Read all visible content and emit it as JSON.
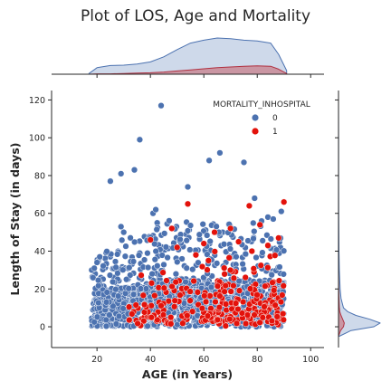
{
  "colors": {
    "survived": "#4c72b0",
    "died": "#e3120b",
    "survived_fill": "#c5d2e6",
    "died_fill": "#c98a96",
    "marker_edge": "#ffffff"
  },
  "chart_data": {
    "type": "scatter",
    "subtype": "jointplot-with-kde-marginals",
    "title": "Plot of LOS, Age and Mortality",
    "xlabel": "AGE (in Years)",
    "ylabel": "Length of Stay (in days)",
    "xlim": [
      3,
      105
    ],
    "ylim": [
      -11,
      125
    ],
    "xticks": [
      20,
      40,
      60,
      80,
      100
    ],
    "yticks": [
      0,
      20,
      40,
      60,
      80,
      100,
      120
    ],
    "grid": false,
    "legend": {
      "title": "MORTALITY_INHOSPITAL",
      "placement": "top-right",
      "entries": [
        {
          "label": "0",
          "color": "#4c72b0"
        },
        {
          "label": "1",
          "color": "#e3120b"
        }
      ]
    },
    "series": [
      {
        "name": "0",
        "color": "#4c72b0",
        "outliers": [
          [
            44,
            117
          ],
          [
            36,
            99
          ],
          [
            34,
            83
          ],
          [
            29,
            81
          ],
          [
            25,
            77
          ],
          [
            62,
            88
          ],
          [
            66,
            92
          ],
          [
            75,
            87
          ],
          [
            54,
            74
          ],
          [
            79,
            68
          ],
          [
            41,
            60
          ],
          [
            42,
            62
          ],
          [
            89,
            61
          ],
          [
            84,
            58
          ],
          [
            86,
            57
          ],
          [
            18,
            30
          ],
          [
            19,
            31
          ],
          [
            20,
            34
          ],
          [
            29,
            53
          ],
          [
            30,
            50
          ]
        ],
        "density_envelope": [
          [
            18,
            32
          ],
          [
            22,
            40
          ],
          [
            26,
            45
          ],
          [
            30,
            46
          ],
          [
            34,
            48
          ],
          [
            38,
            50
          ],
          [
            42,
            55
          ],
          [
            46,
            56
          ],
          [
            50,
            57
          ],
          [
            54,
            56
          ],
          [
            58,
            55
          ],
          [
            62,
            57
          ],
          [
            66,
            55
          ],
          [
            70,
            57
          ],
          [
            74,
            58
          ],
          [
            78,
            56
          ],
          [
            82,
            57
          ],
          [
            86,
            54
          ],
          [
            90,
            52
          ]
        ]
      },
      {
        "name": "1",
        "color": "#e3120b",
        "outliers": [
          [
            54,
            65
          ],
          [
            77,
            64
          ],
          [
            90,
            66
          ],
          [
            40,
            46
          ],
          [
            50,
            42
          ],
          [
            60,
            44
          ],
          [
            78,
            40
          ],
          [
            73,
            45
          ],
          [
            84,
            43
          ],
          [
            48,
            52
          ],
          [
            64,
            50
          ],
          [
            70,
            52
          ],
          [
            81,
            54
          ],
          [
            88,
            47
          ],
          [
            57,
            38
          ]
        ],
        "density_envelope": [
          [
            30,
            20
          ],
          [
            40,
            35
          ],
          [
            50,
            42
          ],
          [
            60,
            45
          ],
          [
            70,
            46
          ],
          [
            80,
            46
          ],
          [
            90,
            42
          ]
        ]
      }
    ],
    "marginal_x": {
      "bins_x": [
        17,
        20,
        25,
        30,
        35,
        40,
        45,
        50,
        55,
        60,
        65,
        70,
        75,
        80,
        85,
        88,
        91
      ],
      "survived_density": [
        0.02,
        0.18,
        0.24,
        0.25,
        0.28,
        0.34,
        0.48,
        0.68,
        0.86,
        0.94,
        1.0,
        0.98,
        0.94,
        0.92,
        0.86,
        0.55,
        0.1
      ],
      "died_density": [
        0.0,
        0.01,
        0.01,
        0.02,
        0.03,
        0.04,
        0.06,
        0.09,
        0.12,
        0.15,
        0.18,
        0.2,
        0.22,
        0.23,
        0.22,
        0.14,
        0.02
      ]
    },
    "marginal_y": {
      "bins_y": [
        -5,
        -2,
        0,
        2,
        4,
        6,
        8,
        10,
        15,
        20,
        30,
        40,
        60,
        80,
        100,
        120
      ],
      "survived_density": [
        0.02,
        0.3,
        0.85,
        1.0,
        0.75,
        0.42,
        0.22,
        0.12,
        0.06,
        0.04,
        0.02,
        0.01,
        0.005,
        0.003,
        0.002,
        0.0
      ],
      "died_density": [
        0.0,
        0.05,
        0.12,
        0.14,
        0.1,
        0.06,
        0.03,
        0.02,
        0.01,
        0.005,
        0.0,
        0.0,
        0.0,
        0.0,
        0.0,
        0.0
      ]
    }
  }
}
